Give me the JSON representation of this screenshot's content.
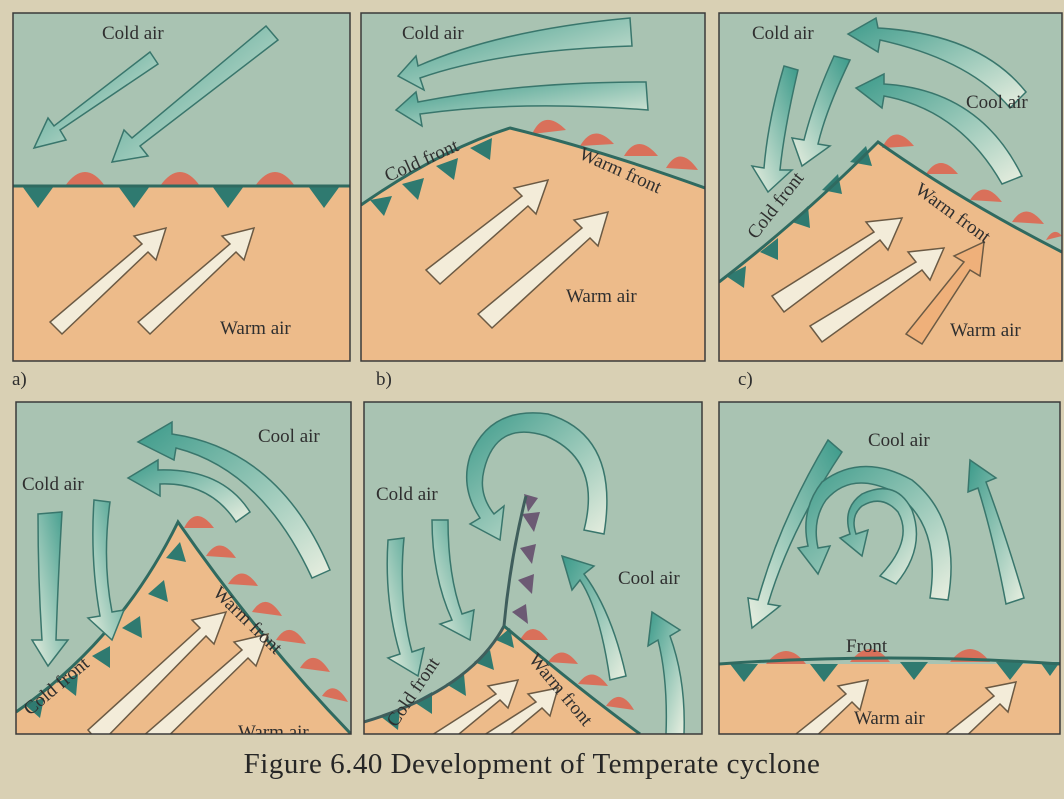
{
  "figure": {
    "caption": "Figure 6.40  Development of Temperate cyclone"
  },
  "colors": {
    "cold_bg": "#a9c3b2",
    "warm_bg": "#edbb8a",
    "cold_arrow": "#3b9a8a",
    "warm_arrow": "#f3ecd9",
    "cold_front_marker": "#2f7a70",
    "warm_front_marker": "#d9705a",
    "occluded_marker": "#6c5a74",
    "border": "#3a3a3a"
  },
  "panels": [
    {
      "id": "a",
      "label": "a)",
      "texts": {
        "cold": "Cold air",
        "warm": "Warm air"
      }
    },
    {
      "id": "b",
      "label": "b)",
      "texts": {
        "cold": "Cold air",
        "cold_front": "Cold front",
        "warm_front": "Warm front",
        "warm": "Warm air"
      }
    },
    {
      "id": "c",
      "label": "c)",
      "texts": {
        "cold": "Cold air",
        "cool": "Cool air",
        "cold_front": "Cold front",
        "warm_front": "Warm front",
        "warm": "Warm air"
      }
    },
    {
      "id": "d",
      "label": "",
      "texts": {
        "cool": "Cool air",
        "cold": "Cold air",
        "cold_front": "Cold front",
        "warm_front": "Warm front",
        "warm": "Warm air"
      }
    },
    {
      "id": "e",
      "label": "",
      "texts": {
        "cold": "Cold air",
        "cool": "Cool air",
        "cold_front": "Cold front",
        "warm_front": "Warm front"
      }
    },
    {
      "id": "f",
      "label": "",
      "texts": {
        "cool": "Cool air",
        "front": "Front",
        "warm": "Warm air"
      }
    }
  ]
}
